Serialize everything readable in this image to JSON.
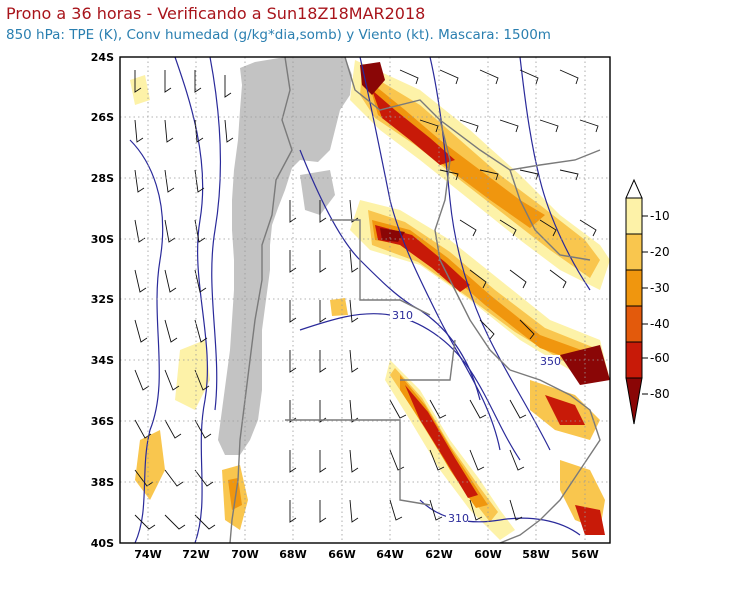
{
  "header": {
    "title": "Prono a 36 horas - Verificando a Sun18Z18MAR2018",
    "subtitle": "850 hPa: TPE (K), Conv humedad (g/kg*dia,somb) y Viento (kt). Mascara: 1500m"
  },
  "map": {
    "lat_labels": [
      "24S",
      "26S",
      "28S",
      "30S",
      "32S",
      "34S",
      "36S",
      "38S",
      "40S"
    ],
    "lon_labels": [
      "74W",
      "72W",
      "70W",
      "68W",
      "66W",
      "64W",
      "62W",
      "60W",
      "58W",
      "56W"
    ],
    "contour_labels": [
      "310",
      "350",
      "310"
    ]
  },
  "legend": {
    "labels": [
      "-10",
      "-20",
      "-30",
      "-40",
      "-60",
      "-80"
    ],
    "colors": [
      "#ffffff",
      "#fdf2a8",
      "#f9c64e",
      "#f0960e",
      "#e35a0c",
      "#c81a08",
      "#8a0606"
    ]
  }
}
